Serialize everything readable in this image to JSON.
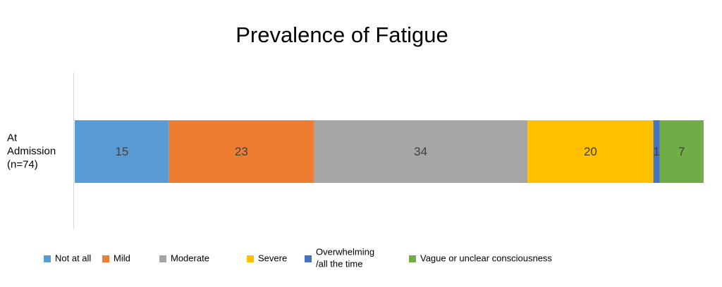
{
  "chart_data": {
    "type": "bar",
    "orientation": "horizontal",
    "stacked": true,
    "title": "Prevalence of Fatigue",
    "categories": [
      "At\nAdmission\n(n=74)"
    ],
    "xlim": [
      0,
      100
    ],
    "series": [
      {
        "name": "Not at all",
        "color": "#5b9bd5",
        "values": [
          15
        ]
      },
      {
        "name": "Mild",
        "color": "#ed7d31",
        "values": [
          23
        ]
      },
      {
        "name": "Moderate",
        "color": "#a5a5a5",
        "values": [
          34
        ]
      },
      {
        "name": "Severe",
        "color": "#ffc000",
        "values": [
          20
        ]
      },
      {
        "name": "Overwhelming\n/all the time",
        "color": "#4472c4",
        "values": [
          1
        ]
      },
      {
        "name": "Vague or unclear consciousness",
        "color": "#70ad47",
        "values": [
          7
        ]
      }
    ],
    "legend": "bottom"
  }
}
